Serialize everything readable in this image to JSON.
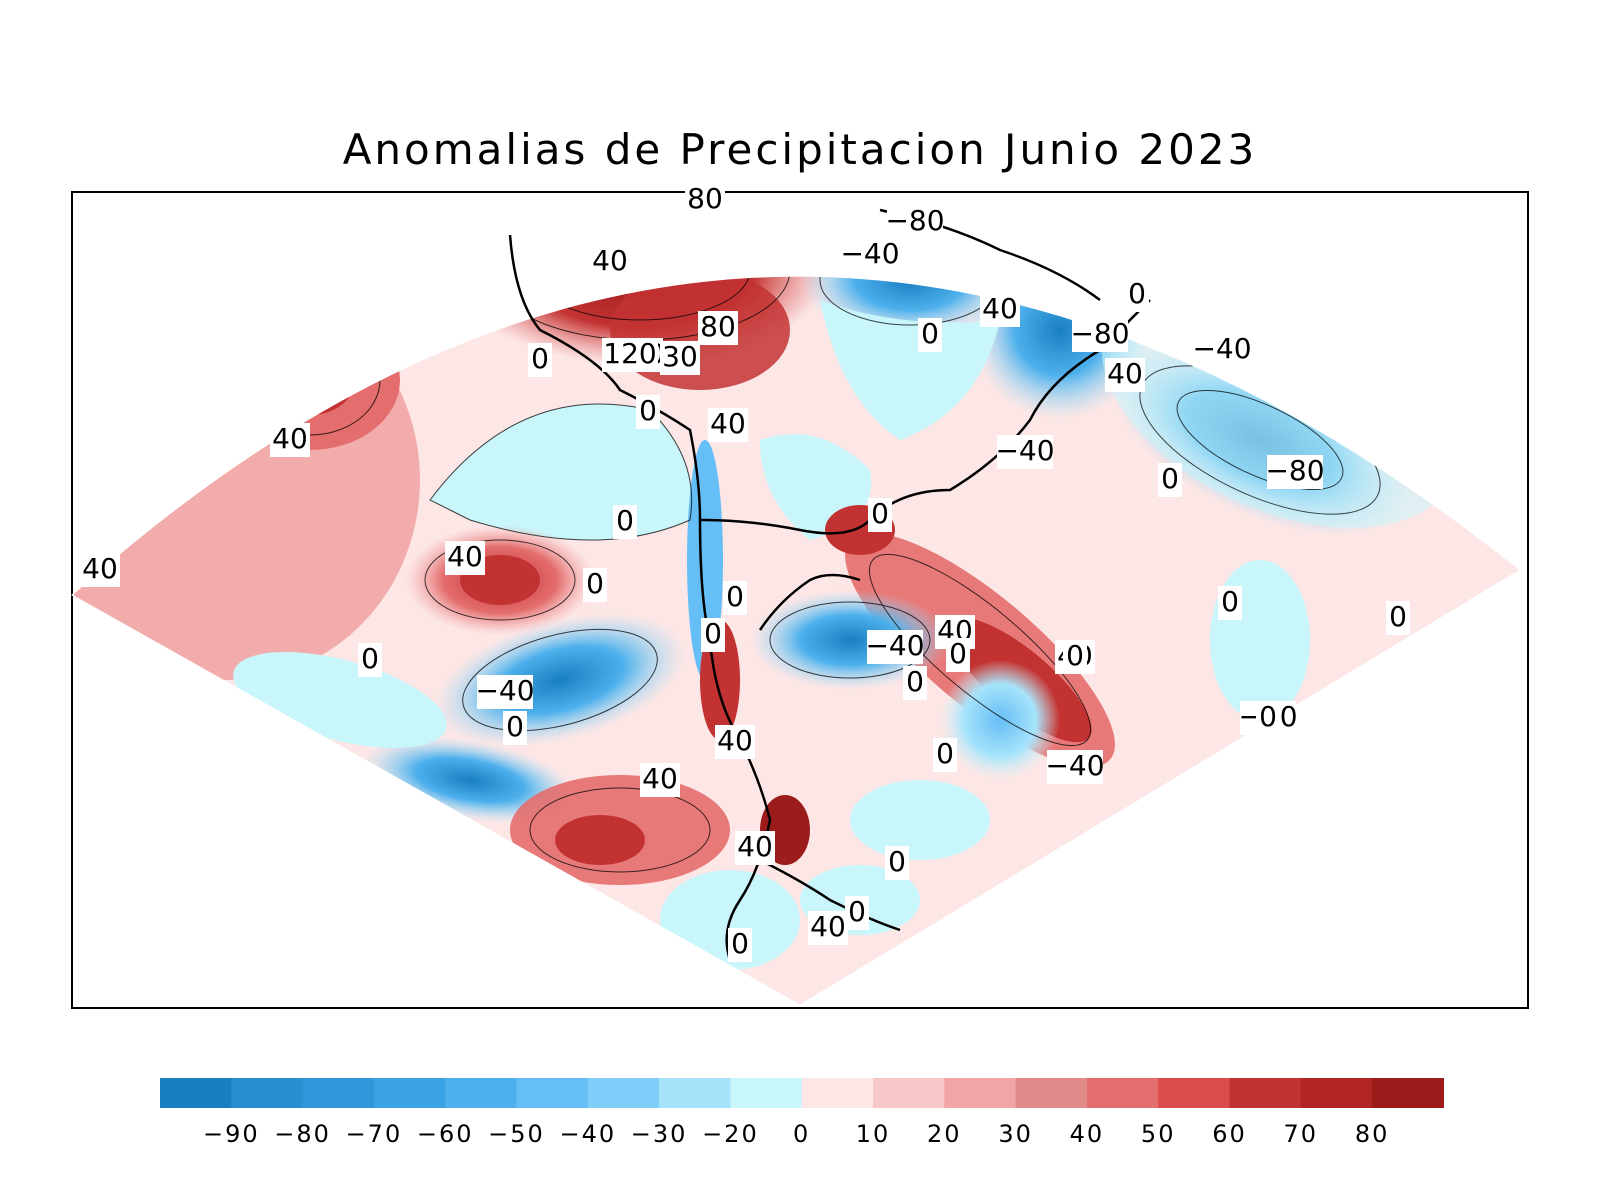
{
  "title": "Anomalias de Precipitacion Junio 2023",
  "colorbar": {
    "colors": [
      "#1a7fc1",
      "#2a8fd0",
      "#2f97da",
      "#3aa3e3",
      "#4db0ec",
      "#65bef6",
      "#7fcdf8",
      "#a6e3fb",
      "#c8f6fb",
      "#fde6e6",
      "#f8c8c8",
      "#f1a5a5",
      "#e08a8a",
      "#e46d6d",
      "#dd4c4c",
      "#c33232",
      "#b02424",
      "#9c1c1c"
    ],
    "tick_labels": [
      "−90",
      "−80",
      "−70",
      "−60",
      "−50",
      "−40",
      "−30",
      "−20",
      "0",
      "10",
      "20",
      "30",
      "40",
      "50",
      "60",
      "70",
      "80"
    ]
  },
  "contour_labels": [
    "80",
    "40",
    "0",
    "−40",
    "40",
    "−80",
    "−40",
    "0",
    "−80",
    "40",
    "120",
    "30",
    "80",
    "0",
    "40",
    "0",
    "−40",
    "0",
    "−40",
    "−80",
    "40",
    "0",
    "0",
    "40",
    "40",
    "0",
    "0",
    "−40",
    "40",
    "0",
    "0",
    "40",
    "−40",
    "0",
    "0",
    "0",
    "0",
    "0",
    "−40",
    "40",
    "0",
    "0",
    "−40",
    "40",
    "40",
    "0",
    "0",
    "40",
    "0",
    "0",
    "0",
    "0",
    "0"
  ]
}
